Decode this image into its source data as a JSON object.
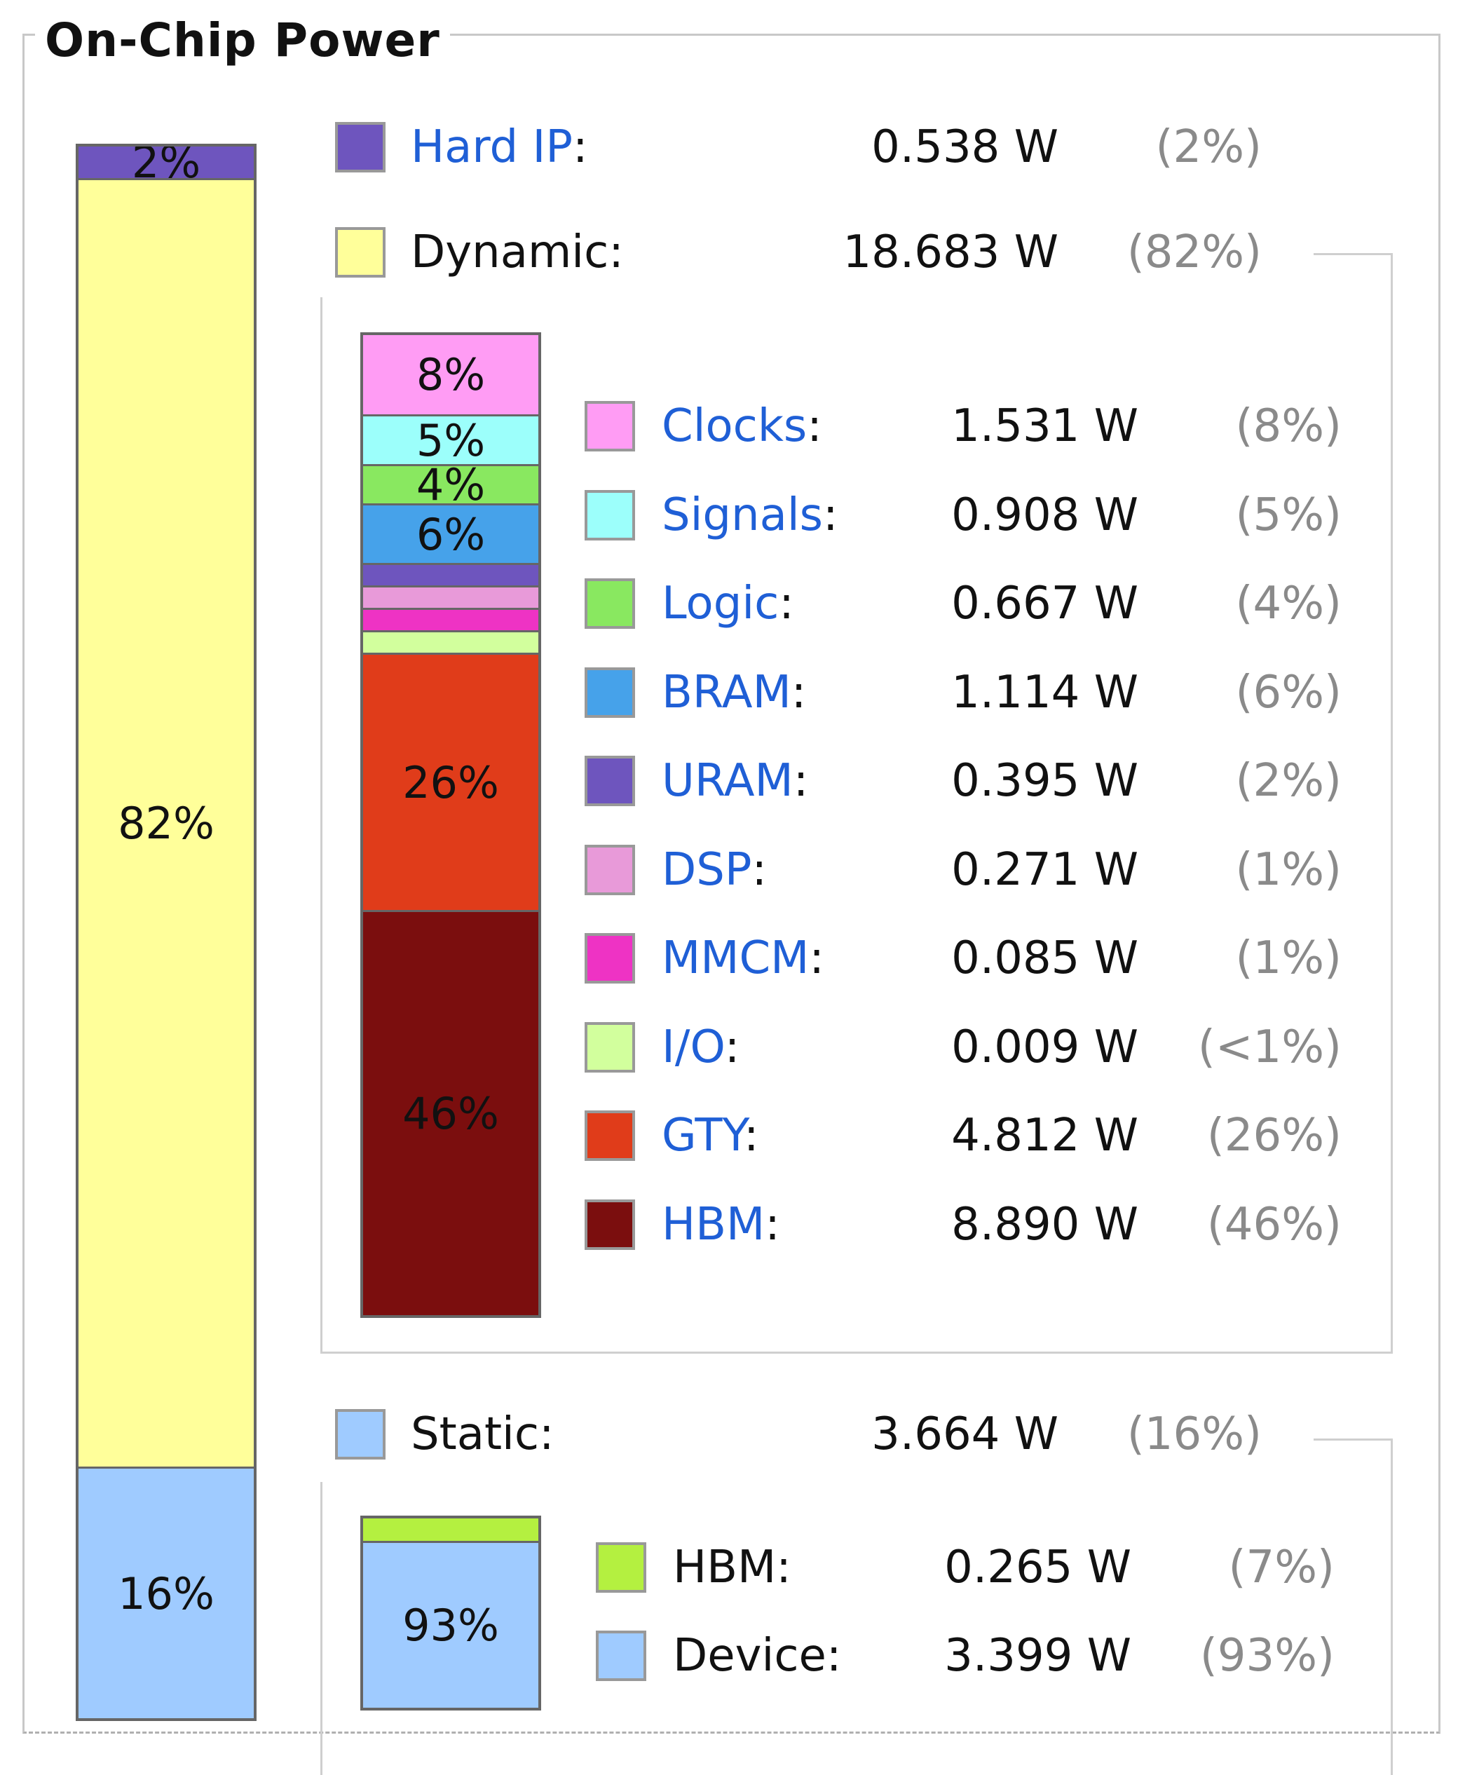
{
  "panel": {
    "title": "On-Chip Power"
  },
  "chart_data": {
    "type": "bar",
    "main_bar": {
      "categories": [
        "Hard IP",
        "Dynamic",
        "Static"
      ],
      "values": [
        2,
        82,
        16
      ],
      "labels": [
        "2%",
        "82%",
        "16%"
      ],
      "colors": [
        "#6e55be",
        "#ffff9a",
        "#9fcbff"
      ]
    },
    "dynamic_bar": {
      "categories": [
        "Clocks",
        "Signals",
        "Logic",
        "BRAM",
        "URAM",
        "DSP",
        "MMCM",
        "I/O",
        "GTY",
        "HBM"
      ],
      "values": [
        8,
        5,
        4,
        6,
        2,
        1,
        1,
        0.05,
        26,
        46
      ],
      "labels": [
        "8%",
        "5%",
        "4%",
        "6%",
        "",
        "",
        "",
        "",
        "26%",
        "46%"
      ],
      "colors": [
        "#ff9cf4",
        "#9cfffb",
        "#89e860",
        "#46a2ea",
        "#6e55be",
        "#e89ad9",
        "#ee33c4",
        "#d2ff9d",
        "#e03c1a",
        "#7b0e0e"
      ]
    },
    "static_bar": {
      "categories": [
        "HBM",
        "Device"
      ],
      "values": [
        7,
        93
      ],
      "labels": [
        "",
        "93%"
      ],
      "colors": [
        "#b4f040",
        "#9fcbff"
      ]
    }
  },
  "summary": [
    {
      "name": "Hard IP",
      "link": true,
      "value": "0.538 W",
      "pct": "(2%)",
      "color": "#6e55be"
    },
    {
      "name": "Dynamic",
      "link": false,
      "value": "18.683 W",
      "pct": "(82%)",
      "color": "#ffff9a"
    },
    {
      "name": "Static",
      "link": false,
      "value": "3.664 W",
      "pct": "(16%)",
      "color": "#9fcbff"
    }
  ],
  "dynamic_items": [
    {
      "name": "Clocks",
      "value": "1.531 W",
      "pct": "(8%)",
      "color": "#ff9cf4"
    },
    {
      "name": "Signals",
      "value": "0.908 W",
      "pct": "(5%)",
      "color": "#9cfffb"
    },
    {
      "name": "Logic",
      "value": "0.667 W",
      "pct": "(4%)",
      "color": "#89e860"
    },
    {
      "name": "BRAM",
      "value": "1.114 W",
      "pct": "(6%)",
      "color": "#46a2ea"
    },
    {
      "name": "URAM",
      "value": "0.395 W",
      "pct": "(2%)",
      "color": "#6e55be"
    },
    {
      "name": "DSP",
      "value": "0.271 W",
      "pct": "(1%)",
      "color": "#e89ad9"
    },
    {
      "name": "MMCM",
      "value": "0.085 W",
      "pct": "(1%)",
      "color": "#ee33c4"
    },
    {
      "name": "I/O",
      "value": "0.009 W",
      "pct": "(<1%)",
      "color": "#d2ff9d"
    },
    {
      "name": "GTY",
      "value": "4.812 W",
      "pct": "(26%)",
      "color": "#e03c1a"
    },
    {
      "name": "HBM",
      "value": "8.890 W",
      "pct": "(46%)",
      "color": "#7b0e0e"
    }
  ],
  "static_items": [
    {
      "name": "HBM",
      "value": "0.265 W",
      "pct": "(7%)",
      "color": "#b4f040"
    },
    {
      "name": "Device",
      "value": "3.399 W",
      "pct": "(93%)",
      "color": "#9fcbff"
    }
  ],
  "colon": ":"
}
